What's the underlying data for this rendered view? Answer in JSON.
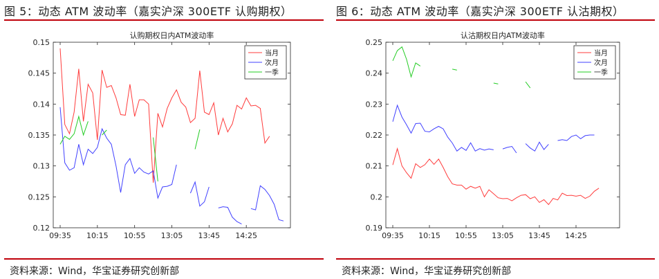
{
  "panels": [
    {
      "figure_title": "图 5：动态 ATM 波动率（嘉实沪深 300ETF 认购期权）",
      "source": "资料来源：Wind，华宝证券研究创新部"
    },
    {
      "figure_title": "图 6：动态 ATM 波动率（嘉实沪深 300ETF 认沽期权）",
      "source": "资料来源：Wind，华宝证券研究创新部"
    }
  ],
  "colors": {
    "rule": "#c0000a",
    "current": "#ff3b3b",
    "next": "#4040ff",
    "quarter": "#22cc22"
  },
  "chart_data": [
    {
      "type": "line",
      "title": "认购期权日内ATM波动率",
      "xlabel": "",
      "ylabel": "",
      "x_ticks": [
        "09:35",
        "10:15",
        "10:55",
        "13:05",
        "13:45",
        "14:25"
      ],
      "x_tick_index": [
        0,
        8,
        16,
        24,
        32,
        40
      ],
      "ylim": [
        0.12,
        0.15
      ],
      "y_ticks": [
        "0.12",
        "0.125",
        "0.13",
        "0.135",
        "0.14",
        "0.145",
        "0.15"
      ],
      "grid": false,
      "legend_position": "top-right",
      "series": [
        {
          "name": "当月",
          "color": "#ff3b3b",
          "values": [
            0.149,
            0.1367,
            0.1352,
            0.1387,
            0.1457,
            0.1372,
            0.1432,
            0.1418,
            0.1342,
            0.1455,
            0.1427,
            0.143,
            0.141,
            0.1383,
            0.1382,
            0.1432,
            0.138,
            0.1407,
            0.1407,
            0.14,
            0.1273,
            0.1385,
            0.1363,
            0.1393,
            0.141,
            0.1423,
            0.1403,
            0.1395,
            0.137,
            0.1377,
            0.1454,
            0.1387,
            0.1383,
            0.1402,
            0.135,
            0.1377,
            0.1355,
            0.1368,
            0.1398,
            0.1392,
            0.141,
            0.1397,
            0.1398,
            0.1393,
            0.1337,
            0.1348
          ]
        },
        {
          "name": "次月",
          "color": "#4040ff",
          "values": [
            0.1395,
            0.1305,
            0.1293,
            0.1297,
            0.1335,
            0.1302,
            0.1327,
            0.132,
            0.133,
            0.136,
            0.1345,
            0.1335,
            0.13,
            0.1257,
            0.1302,
            0.1312,
            0.1288,
            0.1297,
            0.129,
            0.1287,
            0.1292,
            0.1248,
            0.1266,
            0.1267,
            0.127,
            0.1302,
            null,
            null,
            0.1256,
            0.1274,
            0.1235,
            0.1242,
            0.1266,
            null,
            0.1232,
            0.1234,
            0.1233,
            0.1217,
            0.121,
            0.1206,
            null,
            0.1231,
            0.1229,
            0.1268,
            0.1262,
            0.1252,
            0.1238,
            0.1213,
            0.1211
          ]
        },
        {
          "name": "一季",
          "color": "#22cc22",
          "values": [
            0.1335,
            0.1348,
            0.1343,
            0.1352,
            0.138,
            0.135,
            0.1372,
            null,
            null,
            0.135,
            0.1358,
            null,
            null,
            null,
            null,
            null,
            null,
            null,
            null,
            null,
            0.1346,
            0.1275,
            null,
            null,
            null,
            null,
            null,
            null,
            null,
            0.1327,
            0.1359
          ]
        }
      ]
    },
    {
      "type": "line",
      "title": "认沽期权日内ATM波动率",
      "xlabel": "",
      "ylabel": "",
      "x_ticks": [
        "09:35",
        "10:15",
        "10:55",
        "13:05",
        "13:45",
        "14:25"
      ],
      "x_tick_index": [
        0,
        8,
        16,
        24,
        32,
        40
      ],
      "ylim": [
        0.19,
        0.25
      ],
      "y_ticks": [
        "0.19",
        "0.2",
        "0.21",
        "0.22",
        "0.23",
        "0.24",
        "0.25"
      ],
      "grid": false,
      "legend_position": "top-right",
      "series": [
        {
          "name": "当月",
          "color": "#ff3b3b",
          "values": [
            0.2103,
            0.2156,
            0.21,
            0.2078,
            0.206,
            0.2107,
            0.2095,
            0.2104,
            0.2122,
            0.2105,
            0.2122,
            0.2095,
            0.2065,
            0.2042,
            0.2038,
            0.2038,
            0.2025,
            0.2034,
            0.2028,
            0.2034,
            0.2,
            0.2023,
            0.201,
            0.1997,
            0.1994,
            0.1995,
            0.1987,
            0.1997,
            0.2005,
            0.2007,
            0.1994,
            0.2,
            0.1982,
            0.1991,
            0.1975,
            0.1995,
            0.199,
            0.2012,
            0.2004,
            0.2005,
            0.2002,
            0.2005,
            0.1995,
            0.2002,
            0.2018,
            0.2028
          ]
        },
        {
          "name": "次月",
          "color": "#4040ff",
          "values": [
            0.2243,
            0.2296,
            0.2258,
            0.2233,
            0.2206,
            0.2237,
            0.2238,
            0.2212,
            0.221,
            0.222,
            0.2228,
            0.222,
            0.2193,
            0.2174,
            0.2148,
            0.216,
            0.215,
            0.2175,
            0.2148,
            0.2156,
            0.2151,
            0.2155,
            0.2152,
            null,
            0.2155,
            0.216,
            0.2163,
            0.2142,
            null,
            0.2172,
            0.2158,
            0.2148,
            0.2177,
            0.2153,
            0.217,
            null,
            0.2182,
            0.2185,
            0.2182,
            0.2195,
            0.22,
            0.2188,
            0.2198,
            0.22,
            0.22
          ]
        },
        {
          "name": "一季",
          "color": "#22cc22",
          "values": [
            0.244,
            0.2473,
            0.2485,
            0.2445,
            0.2388,
            0.2433,
            0.2423,
            null,
            null,
            null,
            null,
            null,
            null,
            0.2413,
            0.241,
            null,
            null,
            null,
            null,
            null,
            null,
            null,
            0.2368,
            0.2365,
            null,
            null,
            null,
            null,
            null,
            0.2372,
            0.2352
          ]
        }
      ]
    }
  ]
}
